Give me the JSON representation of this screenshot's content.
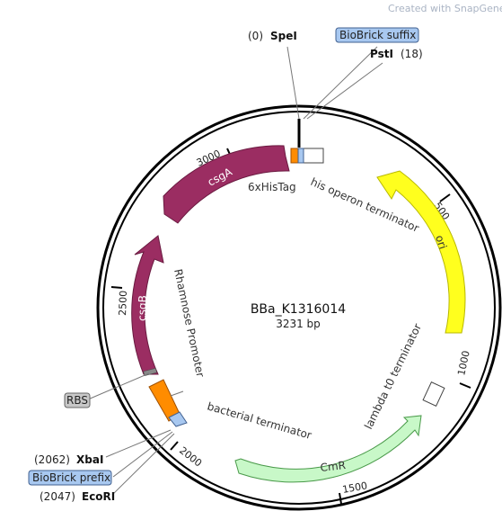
{
  "watermark": "Created with SnapGene®",
  "plasmid": {
    "name": "BBa_K1316014",
    "size": "3231 bp"
  },
  "ticks": [
    "500",
    "1000",
    "1500",
    "2000",
    "2500",
    "3000"
  ],
  "sites": {
    "spei_pos": "(0)",
    "spei": "SpeI",
    "biobrick_suffix": "BioBrick suffix",
    "psti": "PstI",
    "psti_pos": "(18)",
    "rbs": "RBS",
    "xbai_pos": "(2062)",
    "xbai": "XbaI",
    "biobrick_prefix": "BioBrick prefix",
    "ecori_pos": "(2047)",
    "ecori": "EcoRI"
  },
  "features": {
    "csgA": "csgA",
    "csgB": "csgB",
    "ori": "ori",
    "CmR": "CmR",
    "his_tag": "6xHisTag",
    "his_terminator": "his operon terminator",
    "rhamnose": "Rhamnose Promoter",
    "lambda": "lambda t0 terminator",
    "bacterial": "bacterial terminator"
  },
  "colors": {
    "csg": "#9b2d62",
    "ori": "#ffff1e",
    "cmr": "#c8f8c8",
    "promoter": "#ff8c00",
    "prefix_box": "#a8c8f0",
    "backbone": "#000000"
  }
}
